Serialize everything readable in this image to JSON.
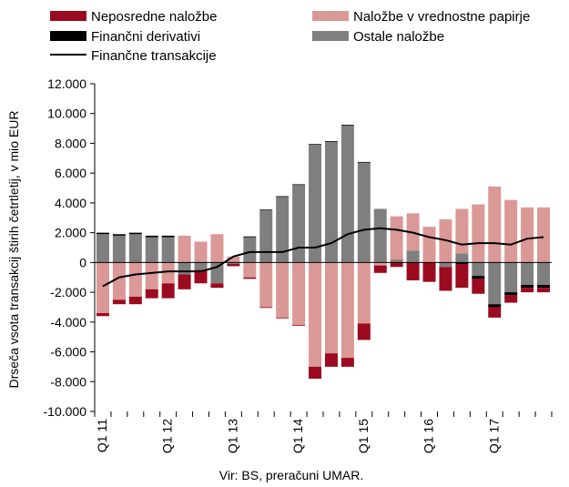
{
  "chart_data": {
    "type": "bar",
    "stacked": true,
    "categories": [
      "Q1 11",
      "Q2 11",
      "Q3 11",
      "Q4 11",
      "Q1 12",
      "Q2 12",
      "Q3 12",
      "Q4 12",
      "Q1 13",
      "Q2 13",
      "Q3 13",
      "Q4 13",
      "Q1 14",
      "Q2 14",
      "Q3 14",
      "Q4 14",
      "Q1 15",
      "Q2 15",
      "Q3 15",
      "Q4 15",
      "Q1 16",
      "Q2 16",
      "Q3 16",
      "Q4 16",
      "Q1 17",
      "Q2 17",
      "Q3 17",
      "Q4 17"
    ],
    "x_tick_labels": [
      "Q1 11",
      "Q1 12",
      "Q1 13",
      "Q1 14",
      "Q1 15",
      "Q1 16",
      "Q1 17"
    ],
    "ylabel": "Drseča vsota transakcij štirih četrtletij, v mio EUR",
    "ylim": [
      -10000,
      12000
    ],
    "y_ticks": [
      -10000,
      -8000,
      -6000,
      -4000,
      -2000,
      0,
      2000,
      4000,
      6000,
      8000,
      10000,
      12000
    ],
    "y_tick_labels": [
      "-10.000",
      "-8.000",
      "-6.000",
      "-4.000",
      "-2.000",
      "0",
      "2.000",
      "4.000",
      "6.000",
      "8.000",
      "10.000",
      "12.000"
    ],
    "legend_position": "top",
    "series": [
      {
        "name": "Neposredne naložbe",
        "color": "#9b0a1e",
        "values": [
          -200,
          -300,
          -500,
          -600,
          -1000,
          -1000,
          -900,
          -300,
          -150,
          -100,
          -50,
          -50,
          -50,
          -800,
          -900,
          -600,
          -1100,
          -500,
          -300,
          -1200,
          -1300,
          -1600,
          -1600,
          -1000,
          -700,
          -500,
          -300,
          -300
        ]
      },
      {
        "name": "Naložbe v vrednostne papirje",
        "color": "#da9896",
        "values": [
          -3400,
          -2500,
          -2300,
          -1800,
          -1400,
          1800,
          1400,
          1900,
          400,
          -1000,
          -3000,
          -3700,
          -4200,
          -7000,
          -6100,
          -6400,
          -4100,
          -200,
          2900,
          2500,
          2400,
          2900,
          3000,
          3900,
          5100,
          4200,
          3700,
          3700
        ]
      },
      {
        "name": "Finančni derivativi",
        "color": "#000000",
        "values": [
          100,
          100,
          100,
          100,
          100,
          0,
          0,
          0,
          0,
          50,
          50,
          50,
          50,
          50,
          50,
          50,
          50,
          0,
          0,
          0,
          0,
          0,
          -100,
          -200,
          -200,
          -200,
          -200,
          -200
        ]
      },
      {
        "name": "Ostale naložbe",
        "color": "#7f7f7f",
        "values": [
          1900,
          1800,
          1900,
          1700,
          1700,
          -800,
          -500,
          -1400,
          -100,
          1700,
          3500,
          4400,
          5200,
          7900,
          8100,
          9200,
          6700,
          3600,
          200,
          800,
          0,
          -300,
          600,
          -900,
          -2800,
          -2000,
          -1500,
          -1500
        ]
      }
    ],
    "line_series": {
      "name": "Finančne transakcije",
      "color": "#000000",
      "values": [
        -1600,
        -1000,
        -800,
        -700,
        -600,
        -600,
        -600,
        -300,
        400,
        700,
        700,
        700,
        1000,
        1000,
        1300,
        1900,
        2200,
        2300,
        2200,
        2000,
        1700,
        1500,
        1200,
        1300,
        1300,
        1200,
        1600,
        1700
      ]
    }
  },
  "source": "Vir: BS, preračuni UMAR."
}
